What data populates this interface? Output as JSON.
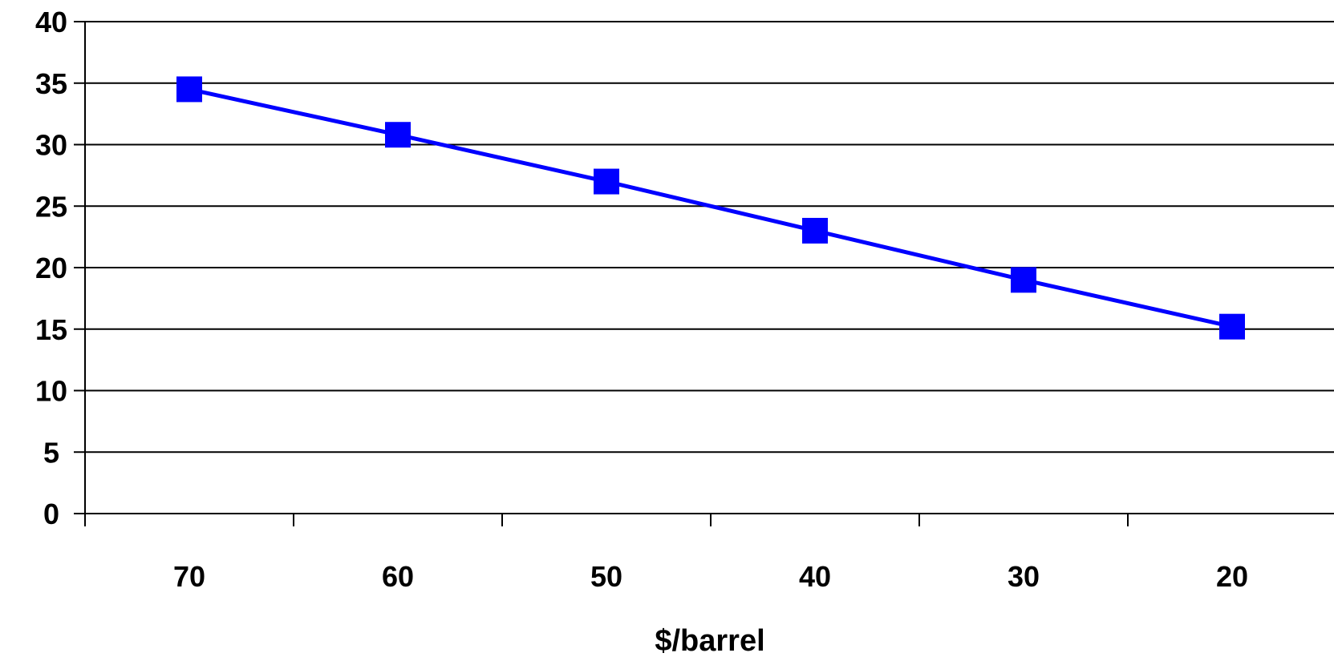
{
  "chart_data": {
    "type": "line",
    "categories": [
      "70",
      "60",
      "50",
      "40",
      "30",
      "20"
    ],
    "series": [
      {
        "values": [
          34.5,
          30.8,
          27.0,
          23.0,
          19.0,
          15.2
        ],
        "color": "#0000FF",
        "marker": "square"
      }
    ],
    "xlabel": "$/barrel",
    "ylabel": "",
    "ylim": [
      0,
      40
    ],
    "yticks": [
      "0",
      "5",
      "10",
      "15",
      "20",
      "25",
      "30",
      "35",
      "40"
    ],
    "grid": true,
    "legend": "none"
  }
}
